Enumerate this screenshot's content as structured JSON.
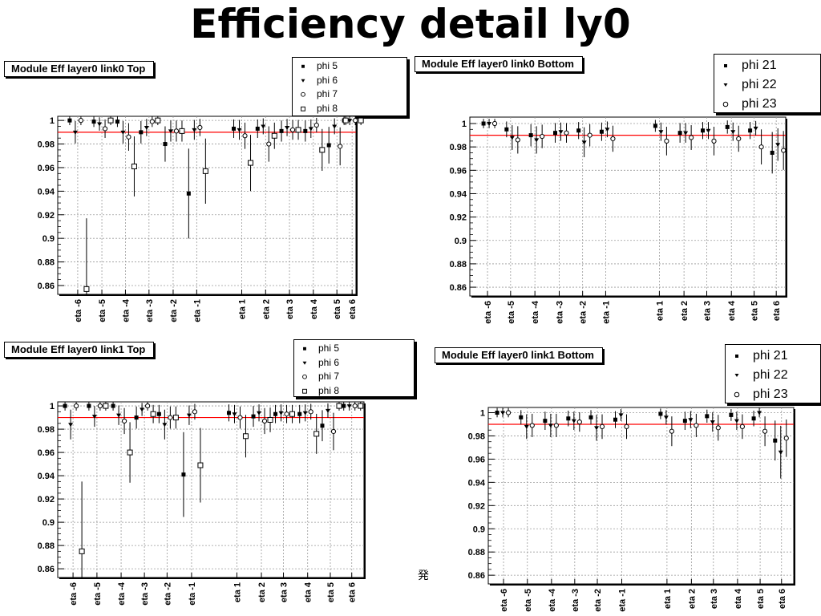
{
  "slide_title": "Efficiency detail ly0",
  "stray_glyph": "発",
  "colors": {
    "reference_line": "#ff0000",
    "grid": "#9a9a9a",
    "markers": "#000000"
  },
  "chart_data": [
    {
      "type": "scatter",
      "title": "Module Eff layer0 link0 Top",
      "categories": [
        "eta -6",
        "eta -5",
        "eta -4",
        "eta -3",
        "eta -2",
        "eta -1",
        "eta 1",
        "eta 2",
        "eta 3",
        "eta 4",
        "eta 5",
        "eta 6"
      ],
      "y_ticks": [
        "1",
        "0.98",
        "0.96",
        "0.94",
        "0.92",
        "0.9",
        "0.88",
        "0.86"
      ],
      "ylim": [
        0.8525,
        1.0035
      ],
      "reference_line": 0.99,
      "grid": true,
      "legend_position": "top-right",
      "marker_styles": [
        "square-filled",
        "triangle-down-filled",
        "circle-open",
        "square-open"
      ],
      "series": [
        {
          "name": "phi 5",
          "values": [
            1.0,
            0.999,
            0.999,
            0.99,
            0.98,
            0.938,
            0.993,
            0.993,
            0.991,
            0.991,
            0.979,
            1.0
          ]
        },
        {
          "name": "phi 6",
          "values": [
            0.99,
            0.997,
            0.99,
            0.994,
            0.991,
            0.992,
            0.992,
            0.995,
            0.994,
            0.993,
            0.995,
            1.0
          ]
        },
        {
          "name": "phi 7",
          "values": [
            1.0,
            0.993,
            0.986,
            0.999,
            0.991,
            0.994,
            0.987,
            0.98,
            0.992,
            0.996,
            0.978,
            1.0
          ]
        },
        {
          "name": "phi 8",
          "values": [
            0.857,
            1.0,
            0.961,
            1.0,
            0.991,
            0.957,
            0.964,
            0.987,
            0.992,
            0.975,
            1.0,
            1.0
          ]
        }
      ]
    },
    {
      "type": "scatter",
      "title": "Module Eff layer0 link0 Bottom",
      "categories": [
        "eta -6",
        "eta -5",
        "eta -4",
        "eta -3",
        "eta -2",
        "eta -1",
        "eta 1",
        "eta 2",
        "eta 3",
        "eta 4",
        "eta 5",
        "eta 6"
      ],
      "y_ticks": [
        "1",
        "0.98",
        "0.96",
        "0.94",
        "0.92",
        "0.9",
        "0.88",
        "0.86"
      ],
      "ylim": [
        0.8525,
        1.0055
      ],
      "reference_line": 0.99,
      "grid": true,
      "legend_position": "top-right",
      "marker_styles": [
        "square-filled",
        "triangle-down-filled",
        "circle-open"
      ],
      "series": [
        {
          "name": "phi 21",
          "values": [
            1.0,
            0.995,
            0.99,
            0.992,
            0.994,
            0.993,
            0.998,
            0.992,
            0.994,
            0.997,
            0.994,
            0.975
          ]
        },
        {
          "name": "phi 22",
          "values": [
            1.0,
            0.988,
            0.986,
            0.993,
            0.984,
            0.995,
            0.993,
            0.992,
            0.994,
            0.993,
            0.996,
            0.982
          ]
        },
        {
          "name": "phi 23",
          "values": [
            1.0,
            0.986,
            0.989,
            0.992,
            0.99,
            0.987,
            0.985,
            0.988,
            0.985,
            0.987,
            0.98,
            0.977
          ]
        }
      ]
    },
    {
      "type": "scatter",
      "title": "Module Eff layer0 link1 Top",
      "categories": [
        "eta -6",
        "eta -5",
        "eta -4",
        "eta -3",
        "eta -2",
        "eta -1",
        "eta 1",
        "eta 2",
        "eta 3",
        "eta 4",
        "eta 5",
        "eta 6"
      ],
      "y_ticks": [
        "1",
        "0.98",
        "0.96",
        "0.94",
        "0.92",
        "0.9",
        "0.88",
        "0.86"
      ],
      "ylim": [
        0.8525,
        1.0035
      ],
      "reference_line": 0.99,
      "grid": true,
      "legend_position": "top-right",
      "marker_styles": [
        "square-filled",
        "triangle-down-filled",
        "circle-open",
        "square-open"
      ],
      "series": [
        {
          "name": "phi 5",
          "values": [
            1.0,
            1.0,
            1.0,
            0.99,
            0.993,
            0.941,
            0.994,
            0.991,
            0.993,
            0.993,
            0.983,
            1.0
          ]
        },
        {
          "name": "phi 6",
          "values": [
            0.984,
            0.991,
            0.992,
            0.997,
            0.984,
            0.992,
            0.993,
            0.994,
            0.994,
            0.994,
            0.996,
            1.0
          ]
        },
        {
          "name": "phi 7",
          "values": [
            1.0,
            1.0,
            0.987,
            1.0,
            0.99,
            0.995,
            0.99,
            0.987,
            0.993,
            0.995,
            0.978,
            1.0
          ]
        },
        {
          "name": "phi 8",
          "values": [
            0.875,
            1.0,
            0.96,
            0.993,
            0.99,
            0.949,
            0.974,
            0.988,
            0.993,
            0.976,
            1.0,
            1.0
          ]
        }
      ]
    },
    {
      "type": "scatter",
      "title": "Module Eff layer0 link1 Bottom",
      "categories": [
        "eta -6",
        "eta -5",
        "eta -4",
        "eta -3",
        "eta -2",
        "eta -1",
        "eta 1",
        "eta 2",
        "eta 3",
        "eta 4",
        "eta 5",
        "eta 6"
      ],
      "y_ticks": [
        "1",
        "0.98",
        "0.96",
        "0.94",
        "0.92",
        "0.9",
        "0.88",
        "0.86"
      ],
      "ylim": [
        0.8525,
        1.0045
      ],
      "reference_line": 0.99,
      "grid": true,
      "legend_position": "top-right",
      "marker_styles": [
        "square-filled",
        "triangle-down-filled",
        "circle-open"
      ],
      "series": [
        {
          "name": "phi 21",
          "values": [
            1.0,
            0.996,
            0.993,
            0.995,
            0.996,
            0.994,
            0.999,
            0.993,
            0.997,
            0.998,
            0.995,
            0.976
          ]
        },
        {
          "name": "phi 22",
          "values": [
            1.0,
            0.988,
            0.989,
            0.993,
            0.987,
            0.998,
            0.996,
            0.994,
            0.992,
            0.993,
            1.0,
            0.966
          ]
        },
        {
          "name": "phi 23",
          "values": [
            1.0,
            0.989,
            0.989,
            0.992,
            0.988,
            0.988,
            0.984,
            0.989,
            0.987,
            0.988,
            0.984,
            0.978
          ]
        }
      ]
    }
  ]
}
